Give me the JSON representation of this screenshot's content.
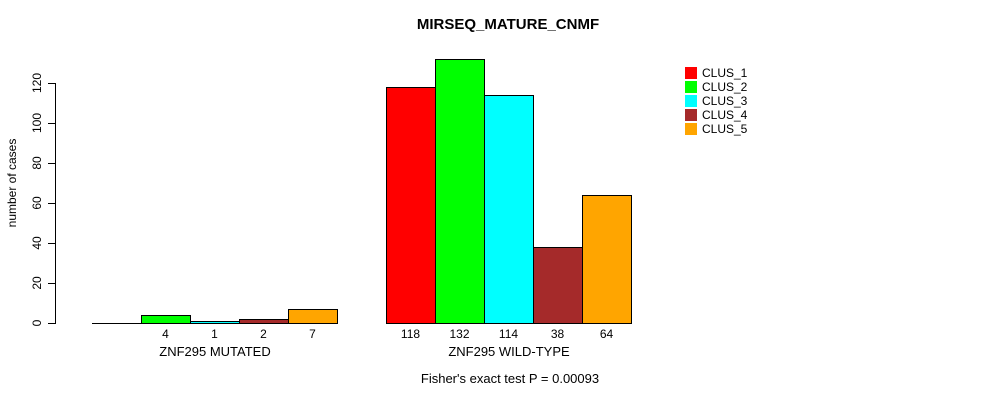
{
  "chart_data": {
    "type": "bar",
    "title": "MIRSEQ_MATURE_CNMF",
    "ylabel": "number of cases",
    "xlabel": "",
    "groups": [
      "ZNF295 MUTATED",
      "ZNF295 WILD-TYPE"
    ],
    "series": [
      {
        "name": "CLUS_1",
        "color": "#FF0000",
        "values": [
          0,
          118
        ]
      },
      {
        "name": "CLUS_2",
        "color": "#00FF00",
        "values": [
          4,
          132
        ]
      },
      {
        "name": "CLUS_3",
        "color": "#00FFFF",
        "values": [
          1,
          114
        ]
      },
      {
        "name": "CLUS_4",
        "color": "#A52A2A",
        "values": [
          2,
          38
        ]
      },
      {
        "name": "CLUS_5",
        "color": "#FFA500",
        "values": [
          7,
          64
        ]
      }
    ],
    "bar_labels": [
      [
        "",
        "4",
        "1",
        "2",
        "7"
      ],
      [
        "118",
        "132",
        "114",
        "38",
        "64"
      ]
    ],
    "yticks": [
      0,
      20,
      40,
      60,
      80,
      100,
      120
    ],
    "ylim": [
      0,
      132
    ],
    "grid": false,
    "legend_position": "top-right",
    "annotation": "Fisher's exact test P = 0.00093"
  },
  "colors": {
    "background": "#ffffff",
    "axis": "#000000",
    "bar_border": "#000000"
  }
}
